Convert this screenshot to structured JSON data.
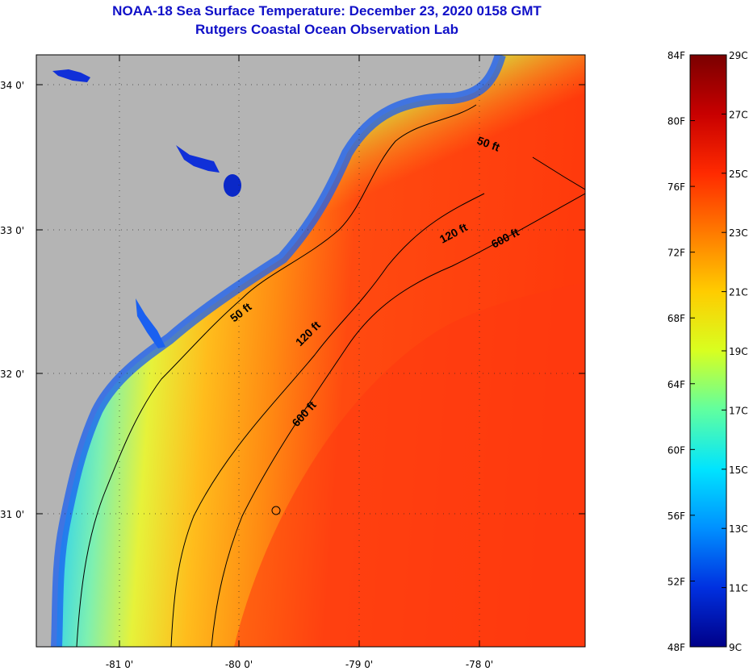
{
  "header": {
    "title": "NOAA-18 Sea Surface Temperature:  December 23, 2020 0158 GMT",
    "subtitle": "Rutgers Coastal Ocean Observation Lab"
  },
  "map": {
    "lat_labels": [
      "34 0'",
      "33 0'",
      "32 0'",
      "31 0'"
    ],
    "lon_labels": [
      "-81 0'",
      "-80 0'",
      "-79 0'",
      "-78 0'"
    ],
    "contours": [
      {
        "label": "50 ft"
      },
      {
        "label": "120 ft"
      },
      {
        "label": "600 ft"
      }
    ],
    "colors": {
      "land": "#b4b4b4",
      "contour": "#000000",
      "title": "#1010c8"
    }
  },
  "colorbar": {
    "fahrenheit": [
      "84F",
      "80F",
      "76F",
      "72F",
      "68F",
      "64F",
      "60F",
      "56F",
      "52F",
      "48F"
    ],
    "celsius": [
      "29C",
      "27C",
      "25C",
      "23C",
      "21C",
      "19C",
      "17C",
      "15C",
      "13C",
      "11C",
      "9C"
    ]
  }
}
